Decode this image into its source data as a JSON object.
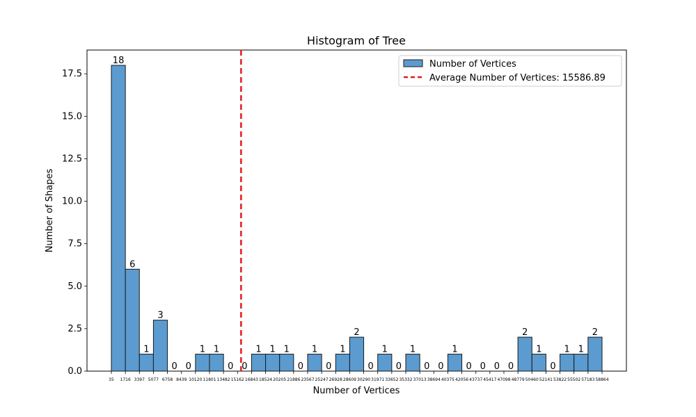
{
  "chart_data": {
    "type": "bar",
    "title": "Histogram of Tree",
    "xlabel": "Number of Vertices",
    "ylabel": "Number of Shapes",
    "ylim": [
      0,
      18.9
    ],
    "yticks": [
      "0.0",
      "2.5",
      "5.0",
      "7.5",
      "10.0",
      "12.5",
      "15.0",
      "17.5"
    ],
    "ytick_values": [
      0,
      2.5,
      5,
      7.5,
      10,
      12.5,
      15,
      17.5
    ],
    "bin_edges": [
      "35",
      "1716",
      "3397",
      "5077",
      "6758",
      "8439",
      "10120",
      "11801",
      "13482",
      "15162",
      "16843",
      "18524",
      "20205",
      "21886",
      "23567",
      "25247",
      "26928",
      "28609",
      "30290",
      "31971",
      "33652",
      "35332",
      "37013",
      "38694",
      "40375",
      "42056",
      "43737",
      "45417",
      "47098",
      "48779",
      "50460",
      "52141",
      "53822",
      "55502",
      "57183",
      "58864"
    ],
    "values": [
      18,
      6,
      1,
      3,
      0,
      0,
      1,
      1,
      0,
      0,
      1,
      1,
      1,
      0,
      1,
      0,
      1,
      2,
      0,
      1,
      0,
      1,
      0,
      0,
      1,
      0,
      0,
      0,
      0,
      2,
      1,
      0,
      1,
      1,
      2
    ],
    "average": 15586.89,
    "series": [
      {
        "name": "Number of Vertices",
        "color": "#5b9bd0",
        "edge_color": "#1a1a1a"
      },
      {
        "name": "Average Number of Vertices: 15586.89",
        "color": "#e41a1c",
        "style": "dashed"
      }
    ],
    "legend_position": "top-right",
    "grid": false
  }
}
